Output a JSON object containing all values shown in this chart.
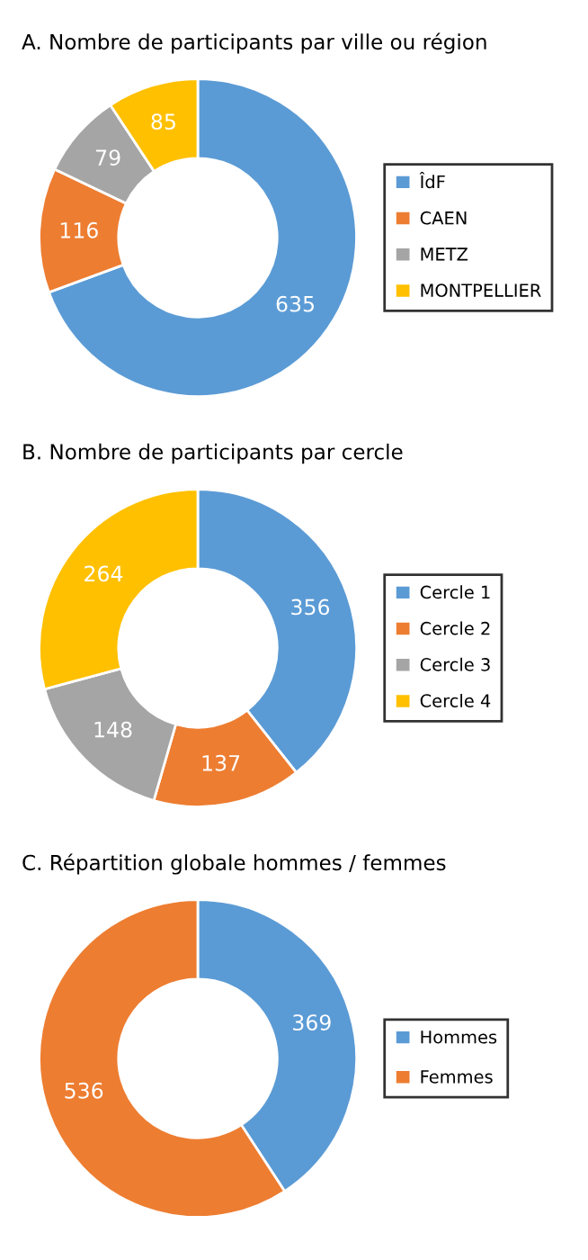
{
  "chart_data": [
    {
      "type": "donut",
      "title": "A. Nombre de participants par ville ou région",
      "categories": [
        "ÎdF",
        "CAEN",
        "METZ",
        "MONTPELLIER"
      ],
      "values": [
        635,
        116,
        79,
        85
      ],
      "colors": [
        "#5b9bd5",
        "#ed7d31",
        "#a5a5a5",
        "#ffc000"
      ],
      "data_labels": true,
      "legend": "right"
    },
    {
      "type": "donut",
      "title": "B. Nombre de participants par cercle",
      "categories": [
        "Cercle 1",
        "Cercle 2",
        "Cercle 3",
        "Cercle 4"
      ],
      "values": [
        356,
        137,
        148,
        264
      ],
      "colors": [
        "#5b9bd5",
        "#ed7d31",
        "#a5a5a5",
        "#ffc000"
      ],
      "data_labels": true,
      "legend": "right"
    },
    {
      "type": "donut",
      "title": "C. Répartition globale hommes / femmes",
      "categories": [
        "Hommes",
        "Femmes"
      ],
      "values": [
        369,
        536
      ],
      "colors": [
        "#5b9bd5",
        "#ed7d31"
      ],
      "data_labels": true,
      "legend": "right"
    }
  ]
}
